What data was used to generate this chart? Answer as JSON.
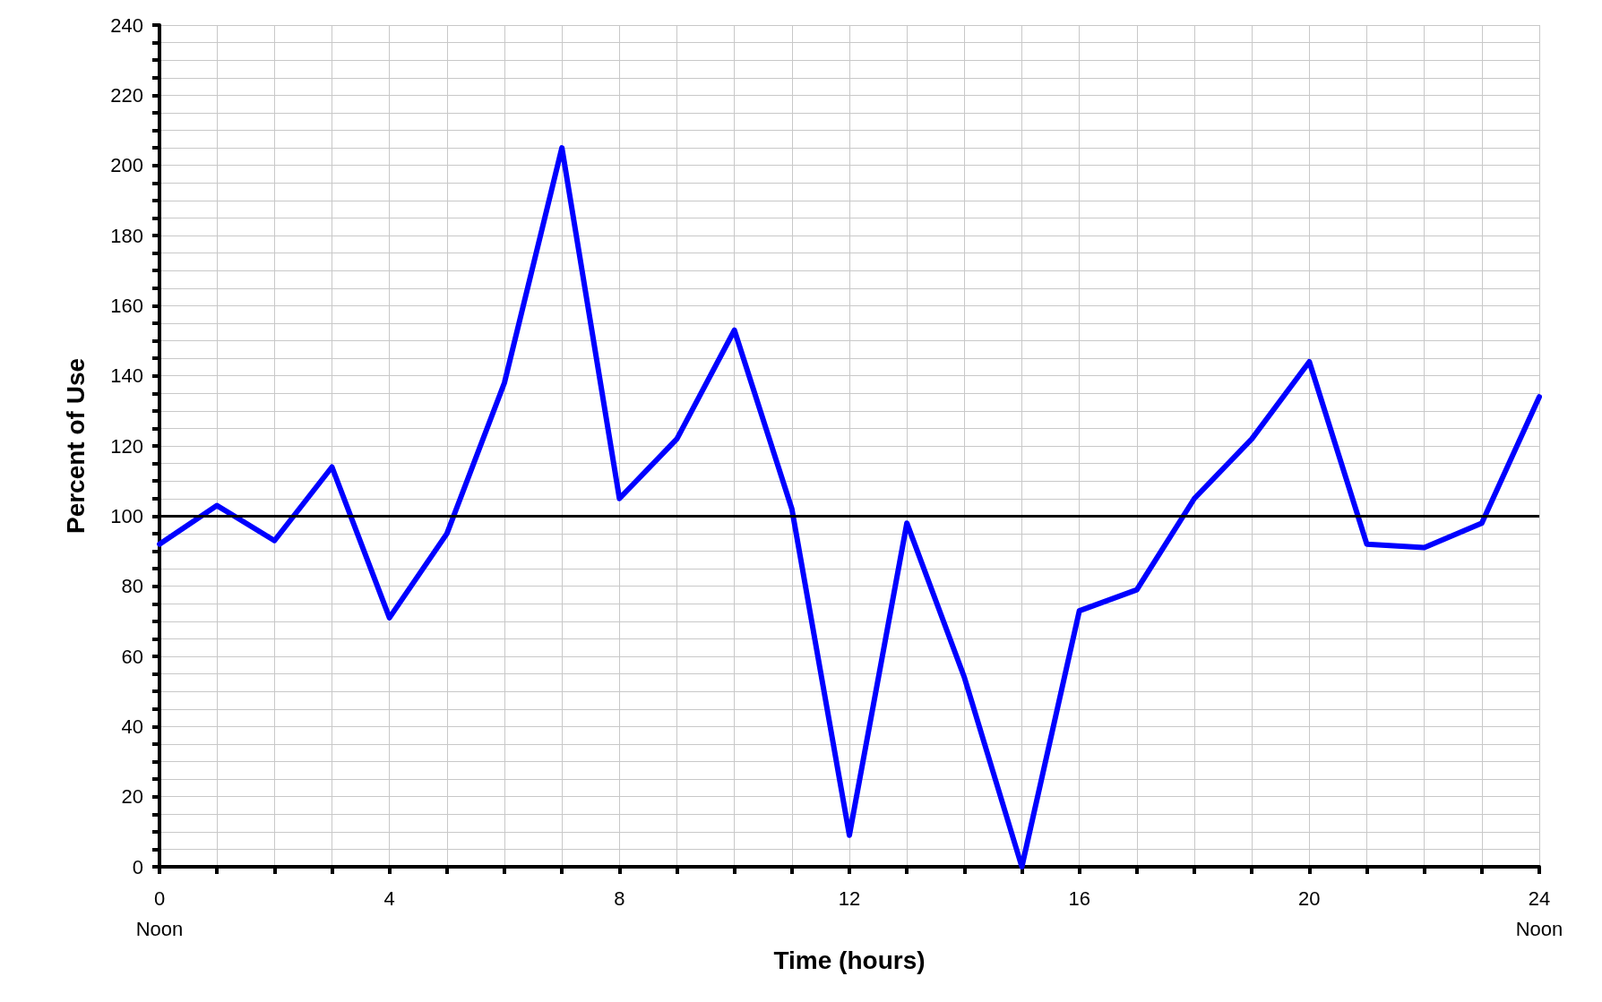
{
  "chart_data": {
    "type": "line",
    "xlabel": "Time (hours)",
    "ylabel": "Percent of Use",
    "x": [
      0,
      1,
      2,
      3,
      4,
      5,
      6,
      7,
      8,
      9,
      10,
      11,
      12,
      13,
      14,
      15,
      16,
      17,
      18,
      19,
      20,
      21,
      22,
      23,
      24
    ],
    "series": [
      {
        "color": "#0000ff",
        "values": [
          92,
          103,
          93,
          114,
          71,
          95,
          138,
          205,
          105,
          122,
          153,
          102,
          9,
          98,
          54,
          0,
          73,
          79,
          105,
          122,
          144,
          92,
          91,
          98,
          134
        ]
      }
    ],
    "xlim": [
      0,
      24
    ],
    "xticks": [
      {
        "value": 0,
        "label": "0\nNoon"
      },
      {
        "value": 1,
        "label": null
      },
      {
        "value": 2,
        "label": null
      },
      {
        "value": 3,
        "label": null
      },
      4,
      {
        "value": 5,
        "label": null
      },
      {
        "value": 6,
        "label": null
      },
      {
        "value": 7,
        "label": null
      },
      8,
      {
        "value": 9,
        "label": null
      },
      {
        "value": 10,
        "label": null
      },
      {
        "value": 11,
        "label": null
      },
      12,
      {
        "value": 13,
        "label": null
      },
      {
        "value": 14,
        "label": null
      },
      {
        "value": 15,
        "label": null
      },
      16,
      {
        "value": 17,
        "label": null
      },
      {
        "value": 18,
        "label": null
      },
      {
        "value": 19,
        "label": null
      },
      20,
      {
        "value": 21,
        "label": null
      },
      {
        "value": 22,
        "label": null
      },
      {
        "value": 23,
        "label": null
      },
      {
        "value": 24,
        "label": "24\nNoon"
      }
    ],
    "ylim": [
      0,
      240
    ],
    "yticks": [
      0,
      {
        "value": 5,
        "label": null
      },
      {
        "value": 10,
        "label": null
      },
      {
        "value": 15,
        "label": null
      },
      20,
      {
        "value": 25,
        "label": null
      },
      {
        "value": 30,
        "label": null
      },
      {
        "value": 35,
        "label": null
      },
      40,
      {
        "value": 45,
        "label": null
      },
      {
        "value": 50,
        "label": null
      },
      {
        "value": 55,
        "label": null
      },
      60,
      {
        "value": 65,
        "label": null
      },
      {
        "value": 70,
        "label": null
      },
      {
        "value": 75,
        "label": null
      },
      80,
      {
        "value": 85,
        "label": null
      },
      {
        "value": 90,
        "label": null
      },
      {
        "value": 95,
        "label": null
      },
      100,
      {
        "value": 105,
        "label": null
      },
      {
        "value": 110,
        "label": null
      },
      {
        "value": 115,
        "label": null
      },
      120,
      {
        "value": 125,
        "label": null
      },
      {
        "value": 130,
        "label": null
      },
      {
        "value": 135,
        "label": null
      },
      140,
      {
        "value": 145,
        "label": null
      },
      {
        "value": 150,
        "label": null
      },
      {
        "value": 155,
        "label": null
      },
      160,
      {
        "value": 165,
        "label": null
      },
      {
        "value": 170,
        "label": null
      },
      {
        "value": 175,
        "label": null
      },
      180,
      {
        "value": 185,
        "label": null
      },
      {
        "value": 190,
        "label": null
      },
      {
        "value": 195,
        "label": null
      },
      200,
      {
        "value": 205,
        "label": null
      },
      {
        "value": 210,
        "label": null
      },
      {
        "value": 215,
        "label": null
      },
      220,
      {
        "value": 225,
        "label": null
      },
      {
        "value": 230,
        "label": null
      },
      {
        "value": 235,
        "label": null
      },
      240
    ],
    "ref_lines": [
      {
        "axis": "y",
        "value": 100,
        "color": "#000000"
      }
    ],
    "grid": true,
    "marker": "none",
    "line_style": "solid"
  }
}
